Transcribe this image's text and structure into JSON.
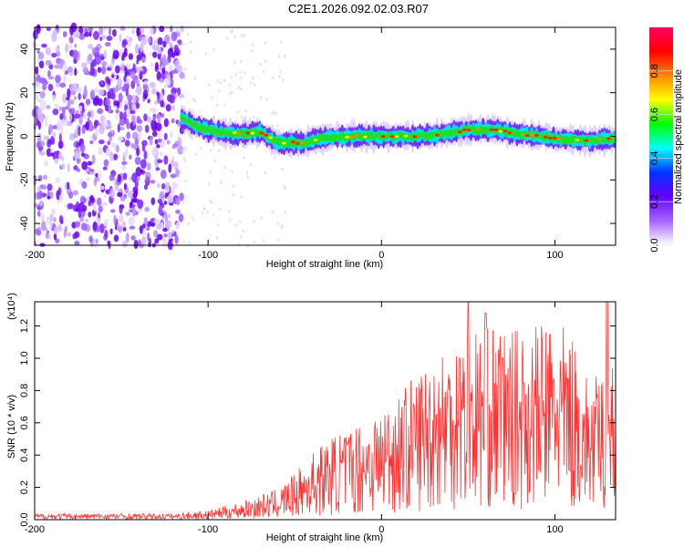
{
  "title": "C2E1.2026.092.02.03.R07",
  "chart_data": [
    {
      "type": "heatmap",
      "xlabel": "Height of straight line (km)",
      "ylabel": "Frequency (Hz)",
      "xlim": [
        -200,
        135
      ],
      "ylim": [
        -50,
        50
      ],
      "x_ticks": [
        -200,
        -100,
        0,
        100
      ],
      "y_ticks": [
        -40,
        -20,
        0,
        20,
        40
      ],
      "colorbar": {
        "label": "Normalized spectral amplitude",
        "range": [
          0,
          1
        ],
        "ticks": [
          "0.0",
          "0.2",
          "0.4",
          "0.6",
          "0.8"
        ],
        "colors": [
          "#ffffff",
          "#a566ff",
          "#6600ff",
          "#0033ff",
          "#00ffff",
          "#00ff00",
          "#ffff00",
          "#ff8800",
          "#ff0000",
          "#ff0066"
        ]
      },
      "ridge": [
        {
          "x": -115,
          "f": 8
        },
        {
          "x": -105,
          "f": 4
        },
        {
          "x": -95,
          "f": 2
        },
        {
          "x": -80,
          "f": 1
        },
        {
          "x": -70,
          "f": 2
        },
        {
          "x": -60,
          "f": -3
        },
        {
          "x": -45,
          "f": -3
        },
        {
          "x": -35,
          "f": -1
        },
        {
          "x": -20,
          "f": 0
        },
        {
          "x": 0,
          "f": 0
        },
        {
          "x": 20,
          "f": 0
        },
        {
          "x": 35,
          "f": 1
        },
        {
          "x": 50,
          "f": 3
        },
        {
          "x": 65,
          "f": 3
        },
        {
          "x": 80,
          "f": 1
        },
        {
          "x": 100,
          "f": -1
        },
        {
          "x": 120,
          "f": -2
        },
        {
          "x": 135,
          "f": -1
        }
      ],
      "noise_region": {
        "x_from": -200,
        "x_to": -115
      }
    },
    {
      "type": "line",
      "xlabel": "Height of straight line (km)",
      "ylabel": "SNR (10 * v/v)",
      "y_multiplier": "(x10⁴)",
      "xlim": [
        -200,
        135
      ],
      "ylim": [
        0,
        1.35
      ],
      "x_ticks": [
        -200,
        -100,
        0,
        100
      ],
      "y_ticks": [
        "0.0",
        "0.2",
        "0.4",
        "0.6",
        "0.8",
        "1.0",
        "1.2"
      ],
      "color": "#ff3333",
      "envelope": [
        {
          "x": -200,
          "y": 0.02
        },
        {
          "x": -120,
          "y": 0.02
        },
        {
          "x": -100,
          "y": 0.03
        },
        {
          "x": -80,
          "y": 0.06
        },
        {
          "x": -70,
          "y": 0.08
        },
        {
          "x": -60,
          "y": 0.1
        },
        {
          "x": -50,
          "y": 0.15
        },
        {
          "x": -40,
          "y": 0.22
        },
        {
          "x": -30,
          "y": 0.27
        },
        {
          "x": -20,
          "y": 0.3
        },
        {
          "x": -10,
          "y": 0.33
        },
        {
          "x": 0,
          "y": 0.37
        },
        {
          "x": 10,
          "y": 0.42
        },
        {
          "x": 20,
          "y": 0.48
        },
        {
          "x": 30,
          "y": 0.55
        },
        {
          "x": 40,
          "y": 0.6
        },
        {
          "x": 50,
          "y": 0.63
        },
        {
          "x": 60,
          "y": 0.63
        },
        {
          "x": 70,
          "y": 0.62
        },
        {
          "x": 80,
          "y": 0.62
        },
        {
          "x": 90,
          "y": 0.64
        },
        {
          "x": 100,
          "y": 0.66
        },
        {
          "x": 110,
          "y": 0.6
        },
        {
          "x": 120,
          "y": 0.45
        },
        {
          "x": 130,
          "y": 0.5
        },
        {
          "x": 135,
          "y": 0.55
        }
      ],
      "peaks": [
        {
          "x": 50,
          "y": 1.35
        },
        {
          "x": 45,
          "y": 1.0
        },
        {
          "x": 60,
          "y": 1.28
        },
        {
          "x": 70,
          "y": 1.0
        },
        {
          "x": 130,
          "y": 1.35
        }
      ]
    }
  ]
}
